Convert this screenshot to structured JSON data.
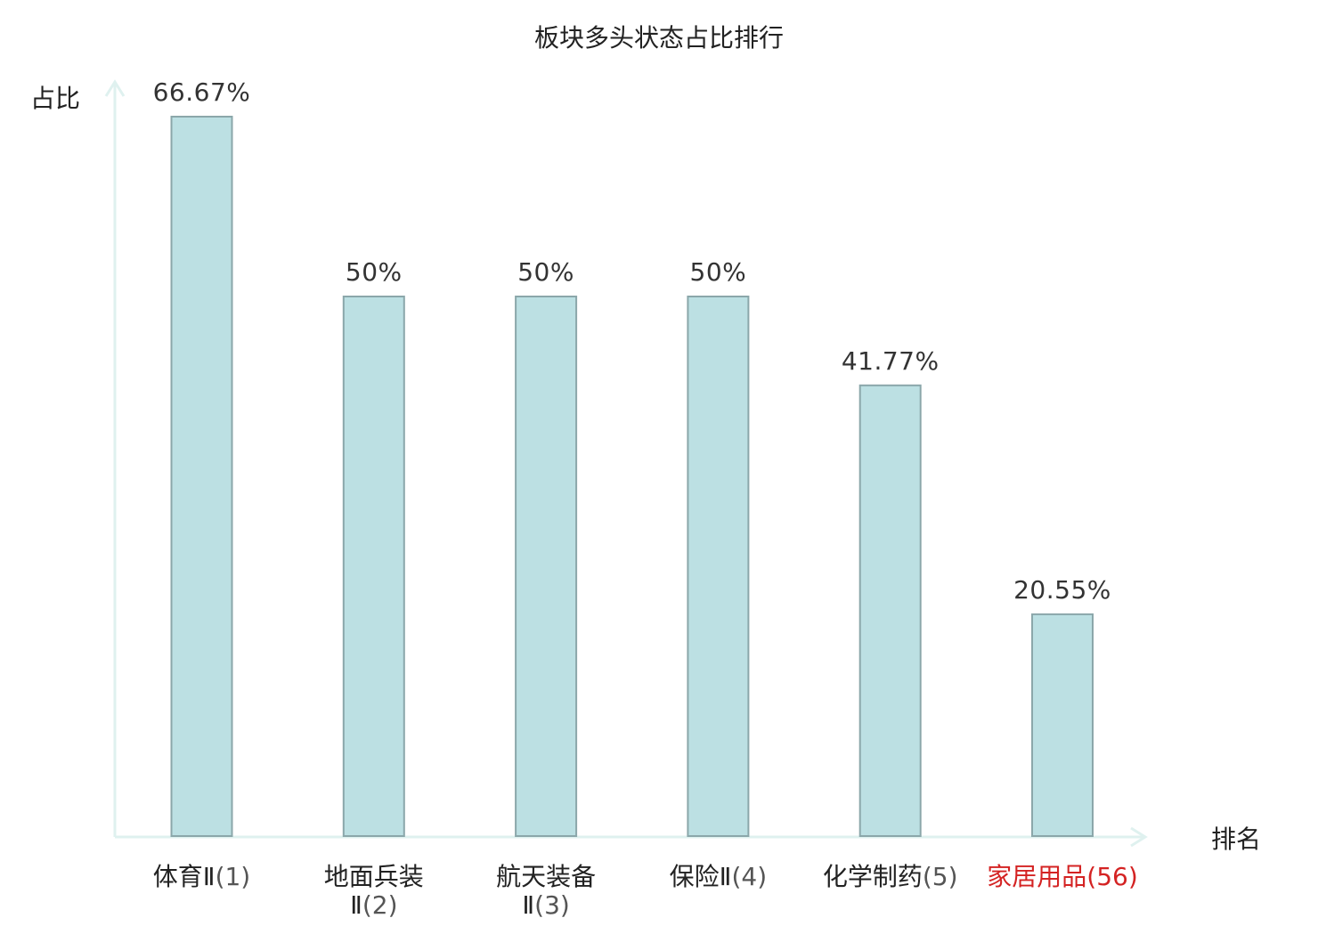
{
  "title": "板块多头状态占比排行",
  "chart_data": {
    "type": "bar",
    "title": "板块多头状态占比排行",
    "ylabel": "占比",
    "xlabel": "排名",
    "ylim": [
      0,
      70
    ],
    "grid": false,
    "categories": [
      {
        "name_lines": [
          "体育Ⅱ"
        ],
        "rank": "(1)",
        "highlight": false
      },
      {
        "name_lines": [
          "地面兵装",
          "Ⅱ"
        ],
        "rank": "(2)",
        "highlight": false
      },
      {
        "name_lines": [
          "航天装备",
          "Ⅱ"
        ],
        "rank": "(3)",
        "highlight": false
      },
      {
        "name_lines": [
          "保险Ⅱ"
        ],
        "rank": "(4)",
        "highlight": false
      },
      {
        "name_lines": [
          "化学制药"
        ],
        "rank": "(5)",
        "highlight": false
      },
      {
        "name_lines": [
          "家居用品"
        ],
        "rank": "(56)",
        "highlight": true
      }
    ],
    "values": [
      66.67,
      50,
      50,
      50,
      41.77,
      20.55
    ],
    "value_labels": [
      "66.67%",
      "50%",
      "50%",
      "50%",
      "41.77%",
      "20.55%"
    ]
  },
  "colors": {
    "bar_fill": "#bce0e3",
    "bar_stroke": "#8ba7aa",
    "axis": "#dff1ef",
    "highlight": "#d42323"
  }
}
